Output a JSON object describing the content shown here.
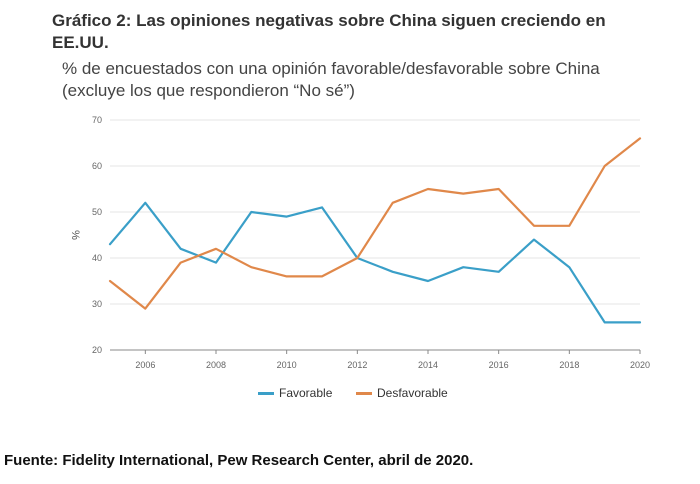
{
  "title": "Gráfico 2: Las opiniones negativas sobre China siguen creciendo en EE.UU.",
  "subtitle": "% de encuestados con una opinión favorable/desfavorable sobre China (excluye los que respondieron “No sé”)",
  "source": "Fuente: Fidelity International, Pew Research Center, abril de 2020.",
  "colors": {
    "favorable": "#3a9fc8",
    "desfavorable": "#e0884a",
    "grid": "#e4e4e4",
    "axis": "#888888"
  },
  "chart_data": {
    "type": "line",
    "ylabel": "%",
    "xlabel": "",
    "ylim": [
      20,
      70
    ],
    "yticks": [
      20,
      30,
      40,
      50,
      60,
      70
    ],
    "xlim": [
      2005,
      2020
    ],
    "xticks": [
      2006,
      2008,
      2010,
      2012,
      2014,
      2016,
      2018,
      2020
    ],
    "grid": true,
    "legend": "bottom",
    "x": [
      2005,
      2006,
      2007,
      2008,
      2009,
      2010,
      2011,
      2012,
      2013,
      2014,
      2015,
      2016,
      2017,
      2018,
      2019,
      2020
    ],
    "series": [
      {
        "name": "Favorable",
        "values": [
          43,
          52,
          42,
          39,
          50,
          49,
          51,
          40,
          37,
          35,
          38,
          37,
          44,
          38,
          26,
          26
        ]
      },
      {
        "name": "Desfavorable",
        "values": [
          35,
          29,
          39,
          42,
          38,
          36,
          36,
          40,
          52,
          55,
          54,
          55,
          47,
          47,
          60,
          66
        ]
      }
    ]
  }
}
